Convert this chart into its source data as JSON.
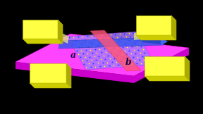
{
  "fig_width": 2.88,
  "fig_height": 1.62,
  "dpi": 100,
  "bg_color": "#000000",
  "substrate_top": "#ff44ff",
  "substrate_side": "#cc00cc",
  "electrode_top": "#ffff44",
  "electrode_front": "#cccc00",
  "electrode_side": "#aaaa00",
  "flake_base": "#cc88ff",
  "atom_blue": "#2244ff",
  "atom_yellow": "#ffff00",
  "fiber_a_color": "#4466ff",
  "fiber_b_color": "#ff4477",
  "label_color": "#110044",
  "label_a": "a",
  "label_b": "b"
}
